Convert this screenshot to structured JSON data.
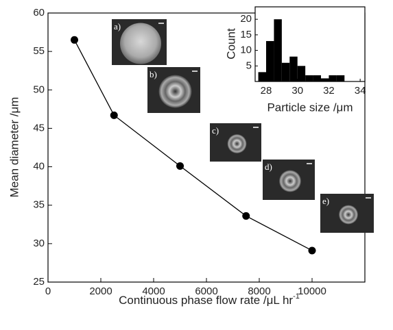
{
  "chart_data": [
    {
      "type": "line",
      "x_label": "Continuous phase flow rate /μL hr",
      "x_label_sup": "-1",
      "y_label": "Mean diameter /μm",
      "x": [
        1000,
        2500,
        5000,
        7500,
        10000
      ],
      "values": [
        56.5,
        46.7,
        40.1,
        33.6,
        29.1
      ],
      "color": "#000000",
      "xlim": [
        0,
        12000
      ],
      "xticks": [
        0,
        2000,
        4000,
        6000,
        8000,
        10000
      ],
      "ylim": [
        25,
        60
      ],
      "yticks": [
        25,
        30,
        35,
        40,
        45,
        50,
        55,
        60
      ],
      "annotations": [
        "a)",
        "b)",
        "c)",
        "d)",
        "e)"
      ]
    },
    {
      "type": "histogram",
      "x_label": "Particle size /μm",
      "y_label": "Count",
      "bins": [
        27.5,
        28,
        28.5,
        29,
        29.5,
        30,
        30.5,
        31,
        31.5,
        32,
        32.5,
        33
      ],
      "values": [
        3,
        13,
        20,
        6,
        8,
        5,
        2,
        2,
        1,
        2,
        2
      ],
      "color": "#000000",
      "xlim": [
        27.3,
        34.3
      ],
      "xticks": [
        28,
        30,
        32,
        34
      ],
      "ylim": [
        0,
        24
      ],
      "yticks": [
        5,
        10,
        15,
        20
      ]
    }
  ]
}
